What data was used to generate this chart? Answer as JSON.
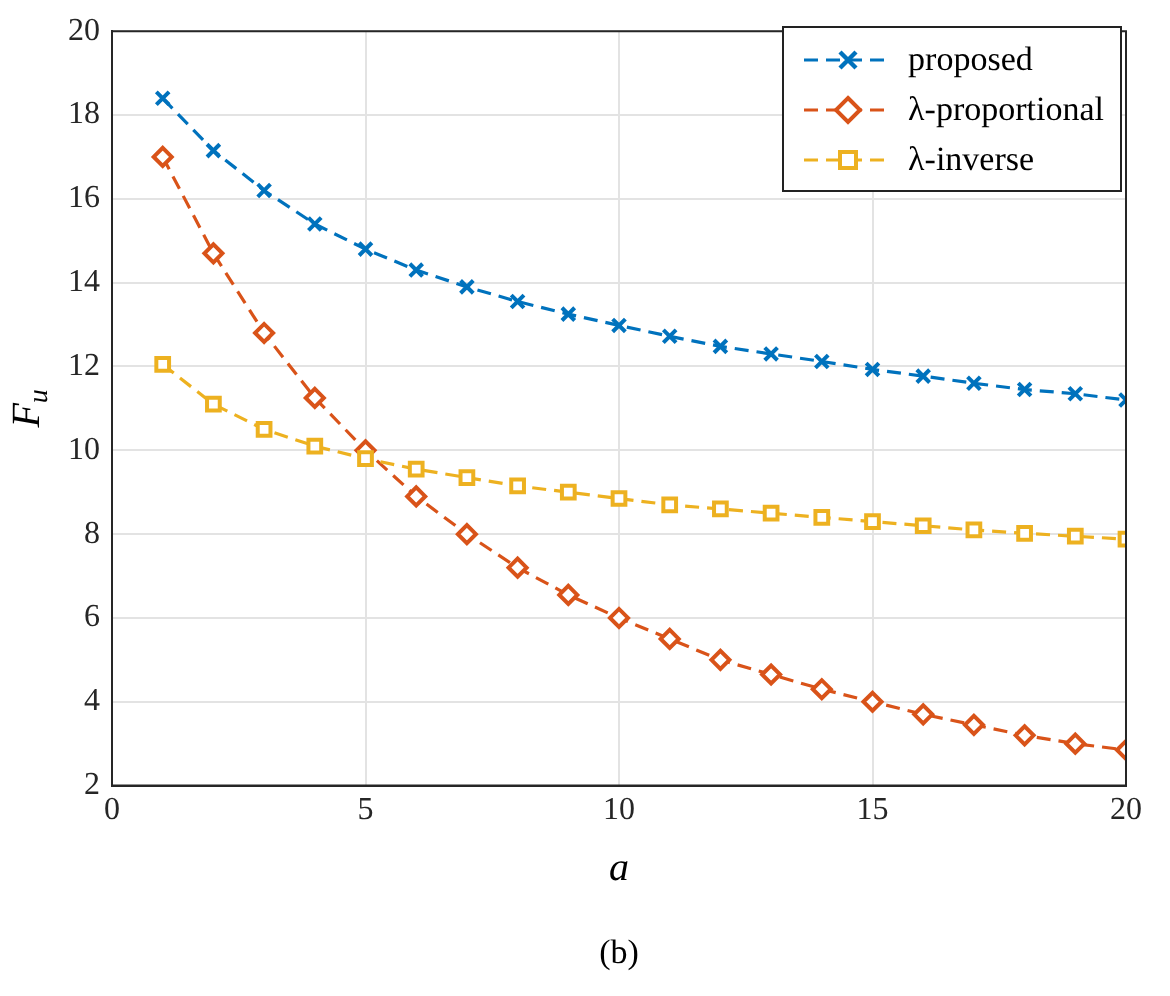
{
  "chart_data": {
    "type": "line",
    "xlabel": "a",
    "ylabel": "F$_{u}$",
    "annotations": [
      "(b)"
    ],
    "x": [
      1,
      2,
      3,
      4,
      5,
      6,
      7,
      8,
      9,
      10,
      11,
      12,
      13,
      14,
      15,
      16,
      17,
      18,
      19,
      20
    ],
    "series": [
      {
        "name": "proposed",
        "color": "#0072bd",
        "marker": "cross",
        "line_style": "dashed",
        "values": [
          18.4,
          17.15,
          16.2,
          15.4,
          14.8,
          14.3,
          13.9,
          13.55,
          13.25,
          12.98,
          12.72,
          12.48,
          12.3,
          12.12,
          11.93,
          11.77,
          11.6,
          11.45,
          11.35,
          11.2
        ]
      },
      {
        "name": "λ-proportional",
        "color": "#d95319",
        "marker": "diamond",
        "line_style": "dashed",
        "values": [
          17.0,
          14.7,
          12.8,
          11.25,
          10.0,
          8.9,
          8.0,
          7.2,
          6.55,
          6.0,
          5.5,
          5.0,
          4.65,
          4.3,
          4.0,
          3.7,
          3.45,
          3.2,
          3.0,
          2.85
        ]
      },
      {
        "name": "λ-inverse",
        "color": "#edb120",
        "marker": "square",
        "line_style": "dashed",
        "values": [
          12.05,
          11.1,
          10.5,
          10.1,
          9.8,
          9.55,
          9.35,
          9.15,
          9.0,
          8.85,
          8.7,
          8.6,
          8.5,
          8.4,
          8.3,
          8.2,
          8.1,
          8.02,
          7.95,
          7.88
        ]
      }
    ],
    "xlim": [
      0,
      20
    ],
    "xticks": [
      0,
      5,
      10,
      15,
      20
    ],
    "ylim": [
      2,
      20
    ],
    "yticks": [
      2,
      4,
      6,
      8,
      10,
      12,
      14,
      16,
      18,
      20
    ],
    "grid": true,
    "legend": "top right"
  }
}
